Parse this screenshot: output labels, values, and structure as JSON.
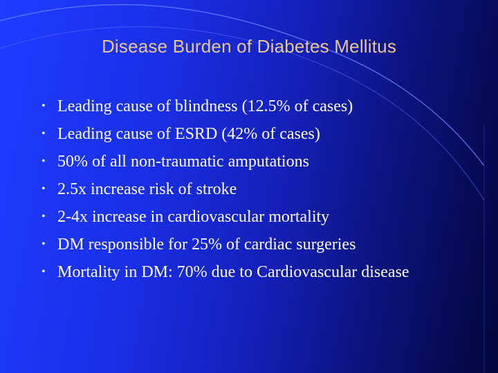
{
  "slide": {
    "title": "Disease Burden of Diabetes Mellitus",
    "bullets": [
      "Leading cause of blindness (12.5% of cases)",
      "Leading cause of ESRD (42% of cases)",
      "50% of all non-traumatic amputations",
      "2.5x increase risk of stroke",
      "2-4x increase in cardiovascular mortality",
      "DM responsible for 25% of cardiac surgeries",
      "Mortality in DM: 70% due to Cardiovascular disease"
    ],
    "bullet_glyph": "•"
  },
  "colors": {
    "title": "#e8c890",
    "text": "#ffffff",
    "background_left": "#1f3cff",
    "background_right": "#03063a"
  }
}
